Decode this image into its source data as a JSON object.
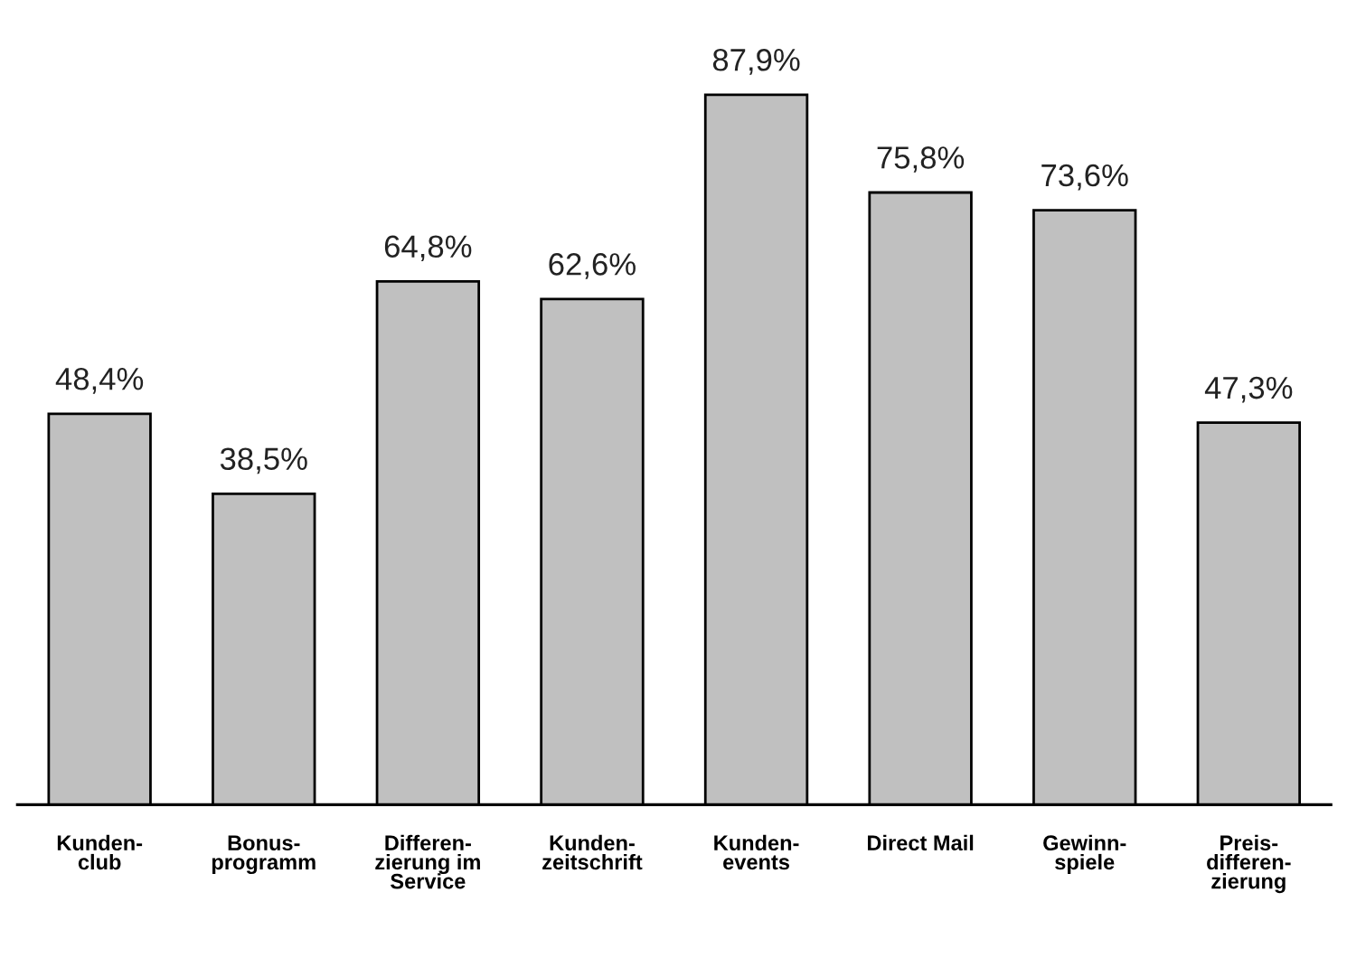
{
  "chart_data": {
    "type": "bar",
    "categories": [
      "Kunden-\nclub",
      "Bonus-\nprogramm",
      "Differen-\nzierung im\nService",
      "Kunden-\nzeitschrift",
      "Kunden-\nevents",
      "Direct Mail",
      "Gewinn-\nspiele",
      "Preis-\ndifferen-\nzierung"
    ],
    "values": [
      48.4,
      38.5,
      64.8,
      62.6,
      87.9,
      75.8,
      73.6,
      47.3
    ],
    "value_labels": [
      "48,4%",
      "38,5%",
      "64,8%",
      "62,6%",
      "87,9%",
      "75,8%",
      "73,6%",
      "47,3%"
    ],
    "color": "#c0c0c0",
    "grid": false,
    "legend": false
  }
}
